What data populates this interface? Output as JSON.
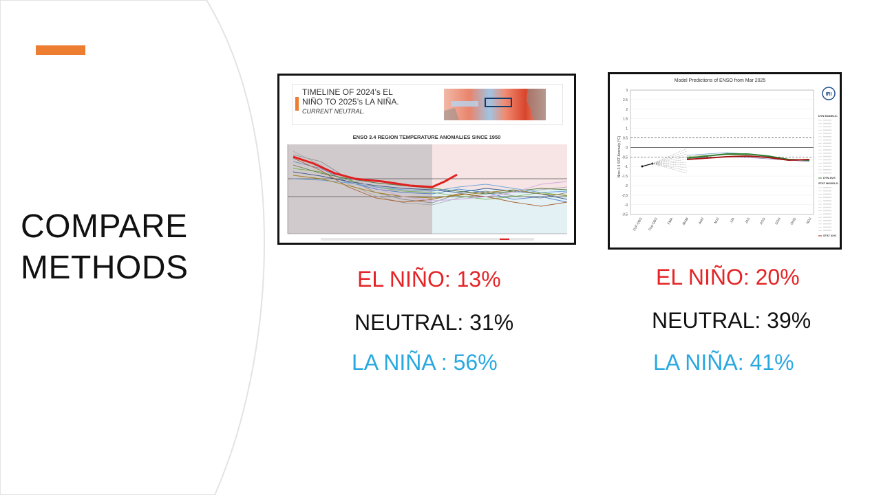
{
  "slide": {
    "title_lines": [
      "COMPARE",
      "METHODS"
    ]
  },
  "left_figure": {
    "headline_lines": [
      "TIMELINE OF 2024’s EL",
      "NIÑO TO 2025’s LA NIÑA."
    ],
    "headline_sub": "CURRENT NEUTRAL.",
    "chart_title": "ENSO 3.4 REGION TEMPERATURE ANOMALIES SINCE 1950"
  },
  "right_figure": {
    "chart_title": "Model Predictions of ENSO from Mar 2025",
    "ylabel": "Nino 3.4 SST Anomaly (°C)",
    "logo_text": "IRI",
    "y_ticks": [
      "3",
      "2.5",
      "2",
      "1.5",
      "1",
      "0.5",
      "0",
      "-0.5",
      "-1",
      "-1.5",
      "-2",
      "-2.5",
      "-3",
      "-3.5"
    ],
    "x_ticks": [
      "DJF-OBS",
      "Feb-OBS",
      "FMA",
      "MAM",
      "AMJ",
      "MJJ",
      "JJA",
      "JAS",
      "ASO",
      "SON",
      "OND",
      "NDJ"
    ],
    "legend_headers": [
      "DYN MODELS:",
      "STAT MODELS:"
    ],
    "legend_avgs": [
      "DYN AVG",
      "STAT AVG"
    ]
  },
  "left_stats": {
    "el_nino": "EL NIÑO: 13%",
    "neutral": "NEUTRAL: 31%",
    "la_nina": "LA NIÑA : 56%"
  },
  "right_stats": {
    "el_nino": "EL NIÑO: 20%",
    "neutral": "NEUTRAL: 39%",
    "la_nina": "LA NIÑA: 41%"
  },
  "colors": {
    "accent": "#ed7d31",
    "el_nino": "#e42426",
    "la_nina": "#29a8e0"
  }
}
